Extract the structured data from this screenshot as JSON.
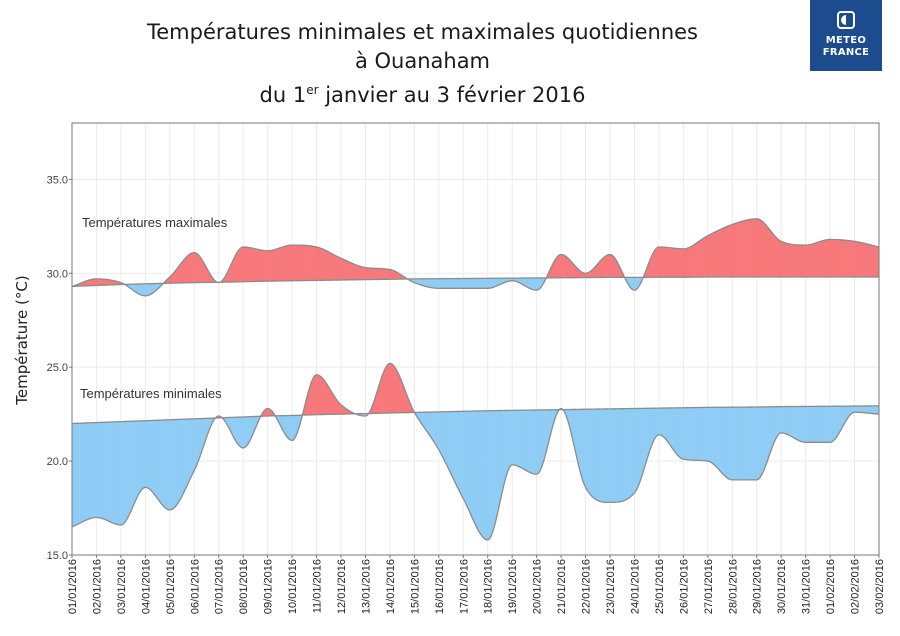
{
  "title": {
    "line1": "Températures minimales et maximales quotidiennes",
    "line2": "à Ouanaham",
    "line3_prefix": "du 1",
    "line3_sup": "er",
    "line3_suffix": " janvier au 3 février 2016"
  },
  "logo": {
    "line1": "METEO",
    "line2": "FRANCE"
  },
  "colors": {
    "above": "#f7797b",
    "below": "#8fcdf5",
    "line": "#8c8c8c",
    "grid": "#ececec"
  },
  "chart_data": {
    "type": "area",
    "ylabel": "Température (°C)",
    "ylim": [
      15,
      38
    ],
    "yticks": [
      15.0,
      20.0,
      25.0,
      30.0,
      35.0
    ],
    "grid": true,
    "categories": [
      "01/01/2016",
      "02/01/2016",
      "03/01/2016",
      "04/01/2016",
      "05/01/2016",
      "06/01/2016",
      "07/01/2016",
      "08/01/2016",
      "09/01/2016",
      "10/01/2016",
      "11/01/2016",
      "12/01/2016",
      "13/01/2016",
      "14/01/2016",
      "15/01/2016",
      "16/01/2016",
      "17/01/2016",
      "18/01/2016",
      "19/01/2016",
      "20/01/2016",
      "21/01/2016",
      "22/01/2016",
      "23/01/2016",
      "24/01/2016",
      "25/01/2016",
      "26/01/2016",
      "27/01/2016",
      "28/01/2016",
      "29/01/2016",
      "30/01/2016",
      "31/01/2016",
      "01/02/2016",
      "02/02/2016",
      "03/02/2016"
    ],
    "series": [
      {
        "name": "Températures maximales",
        "values": [
          29.3,
          29.7,
          29.5,
          28.8,
          29.8,
          31.1,
          29.5,
          31.4,
          31.2,
          31.5,
          31.4,
          30.8,
          30.3,
          30.2,
          29.5,
          29.2,
          29.2,
          29.2,
          29.6,
          29.1,
          31.0,
          30.0,
          31.0,
          29.1,
          31.4,
          31.3,
          32.0,
          32.6,
          32.9,
          31.7,
          31.5,
          31.8,
          31.7,
          31.4
        ],
        "normal": [
          29.3,
          29.35,
          29.4,
          29.44,
          29.47,
          29.5,
          29.52,
          29.55,
          29.58,
          29.6,
          29.62,
          29.64,
          29.66,
          29.68,
          29.7,
          29.71,
          29.72,
          29.73,
          29.74,
          29.75,
          29.76,
          29.77,
          29.78,
          29.78,
          29.79,
          29.79,
          29.8,
          29.8,
          29.8,
          29.8,
          29.8,
          29.8,
          29.8,
          29.8
        ]
      },
      {
        "name": "Températures minimales",
        "values": [
          16.5,
          17.0,
          16.6,
          18.6,
          17.4,
          19.5,
          22.4,
          20.7,
          22.8,
          21.1,
          24.6,
          23.0,
          22.4,
          25.2,
          22.6,
          20.6,
          18.0,
          15.8,
          19.8,
          19.3,
          22.8,
          18.6,
          17.8,
          18.3,
          21.4,
          20.1,
          20.0,
          19.0,
          19.0,
          21.5,
          21.0,
          21.0,
          22.6,
          22.5
        ],
        "normal": [
          22.0,
          22.05,
          22.1,
          22.15,
          22.2,
          22.25,
          22.3,
          22.35,
          22.4,
          22.43,
          22.47,
          22.5,
          22.53,
          22.56,
          22.59,
          22.62,
          22.65,
          22.68,
          22.7,
          22.72,
          22.74,
          22.76,
          22.78,
          22.8,
          22.82,
          22.84,
          22.86,
          22.87,
          22.88,
          22.9,
          22.91,
          22.92,
          22.93,
          22.94
        ]
      }
    ]
  }
}
